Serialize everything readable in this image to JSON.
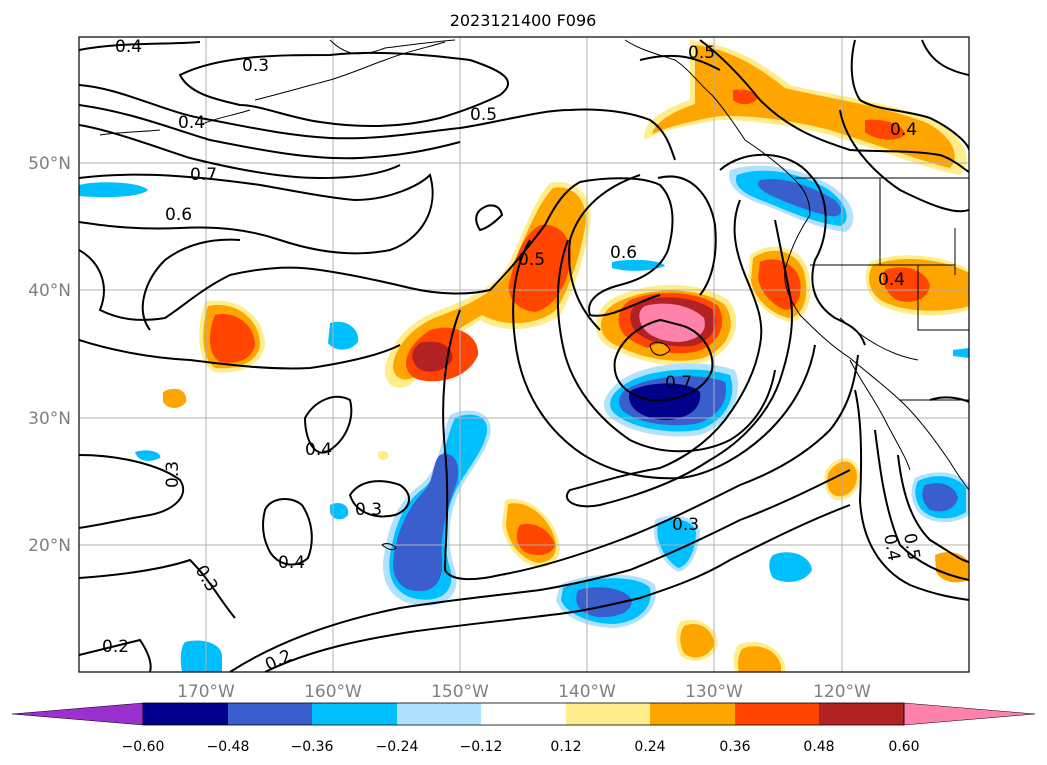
{
  "title": "2023121400 F096",
  "map": {
    "lat_ticks": [
      "50°N",
      "40°N",
      "30°N",
      "20°N"
    ],
    "lon_ticks": [
      "170°W",
      "160°W",
      "150°W",
      "140°W",
      "130°W",
      "120°W"
    ],
    "lat_range": [
      10,
      60
    ],
    "lon_range": [
      -180,
      -110
    ],
    "grid": true
  },
  "contour_labels": [
    "0.4",
    "0.3",
    "0.4",
    "0.5",
    "0.5",
    "0.7",
    "0.6",
    "0.5",
    "0.6",
    "0.4",
    "0.4",
    "0.7",
    "0.4",
    "0.3",
    "0.3",
    "0.4",
    "0.3",
    "0.3",
    "0.2",
    "0.2",
    "0.5",
    "0.4"
  ],
  "colorbar": {
    "ticks": [
      "−0.60",
      "−0.48",
      "−0.36",
      "−0.24",
      "−0.12",
      "0.12",
      "0.24",
      "0.36",
      "0.48",
      "0.60"
    ],
    "colors": {
      "under": "#9b30d0",
      "neg060": "#00008b",
      "neg048": "#3a5fcd",
      "neg036": "#00bfff",
      "neg024": "#b0e2ff",
      "neutral": "#ffffff",
      "pos012": "#ffec8b",
      "pos024": "#ffa500",
      "pos036": "#ff4500",
      "pos048": "#b22222",
      "over": "#ff82ab"
    }
  }
}
